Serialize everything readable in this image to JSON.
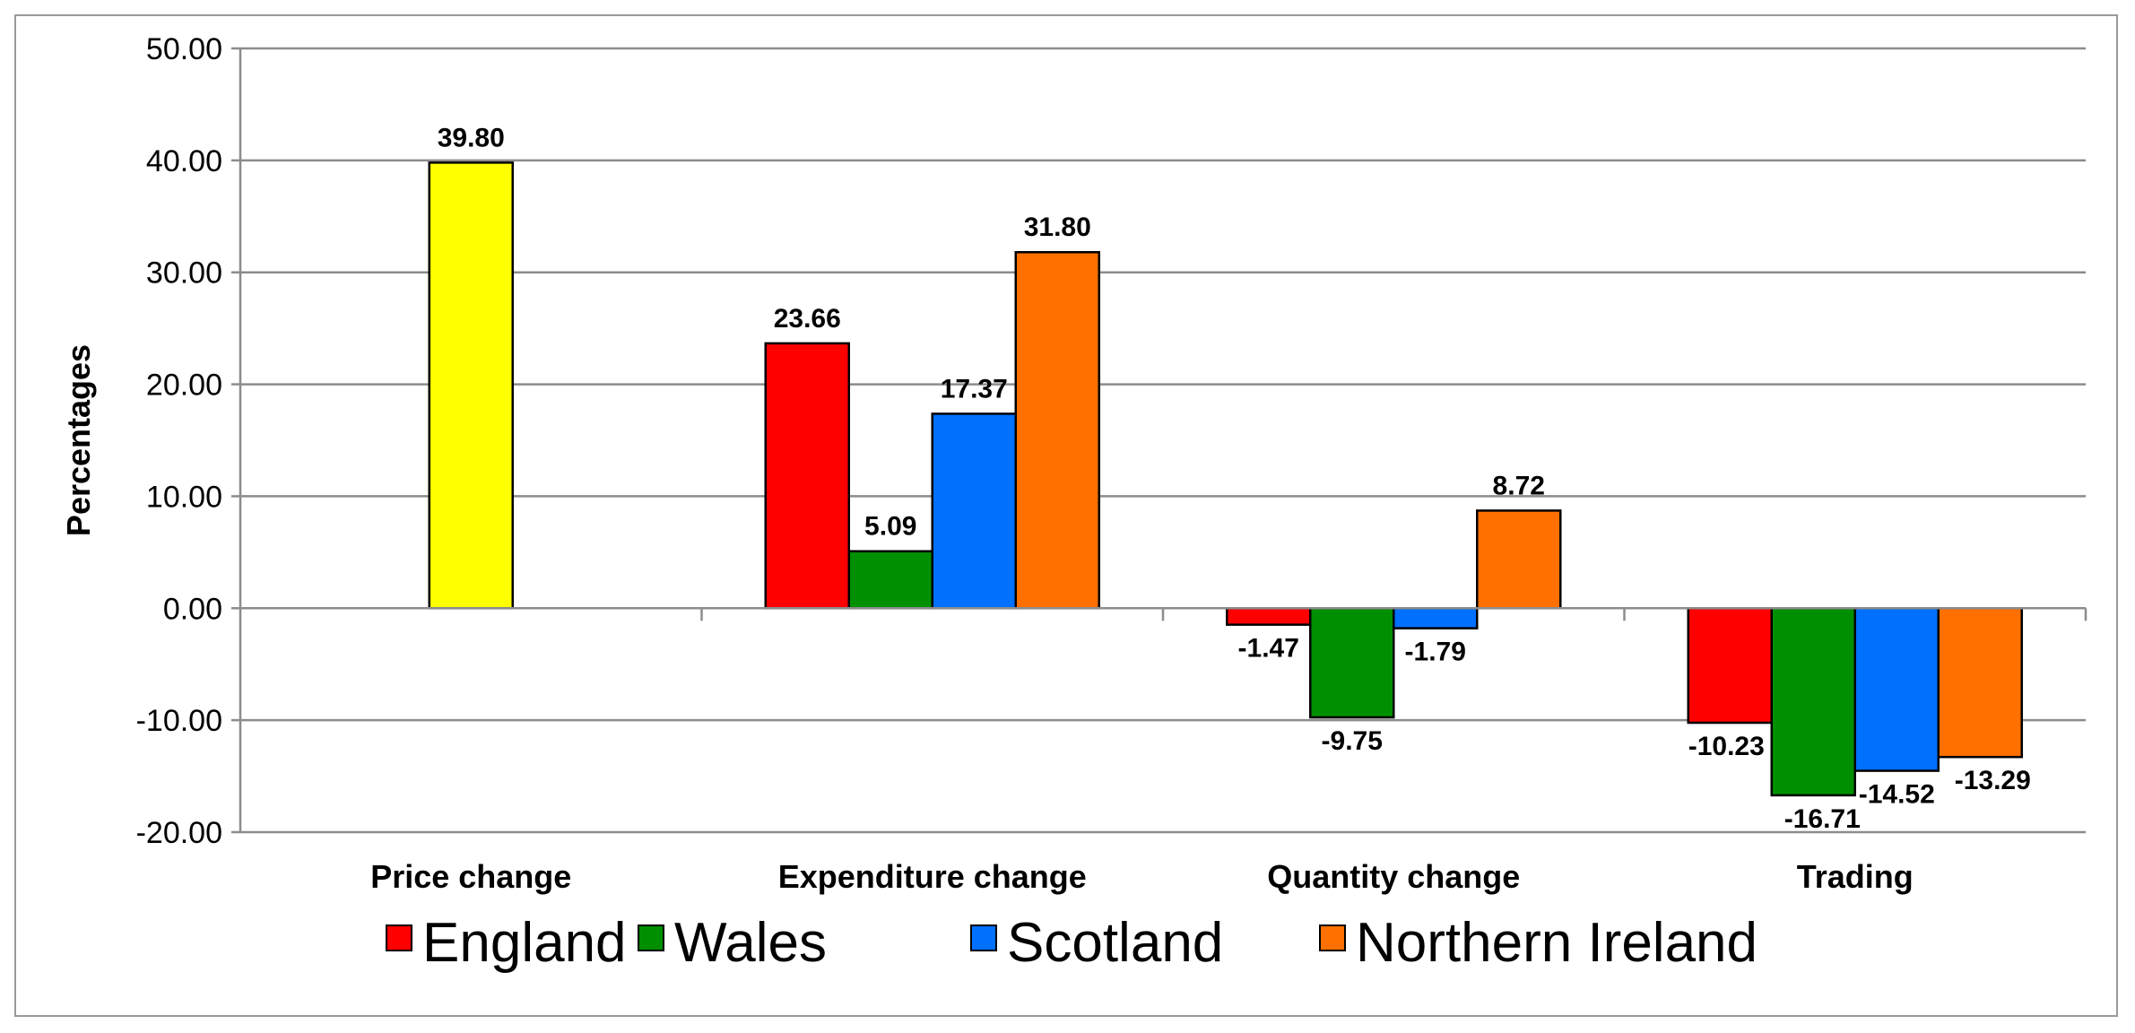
{
  "chart_data": {
    "type": "bar",
    "title": "",
    "xlabel": "",
    "ylabel": "Percentages",
    "ylim": [
      -20,
      50
    ],
    "yticks": [
      "50.00",
      "40.00",
      "30.00",
      "20.00",
      "10.00",
      "0.00",
      "-10.00",
      "-20.00"
    ],
    "categories": [
      "Price change",
      "Expenditure change",
      "Quantity change",
      "Trading"
    ],
    "series": [
      {
        "name": "England",
        "color": "#ff0000",
        "values": [
          null,
          23.66,
          -1.47,
          -10.23
        ],
        "labels": [
          null,
          "23.66",
          "-1.47",
          "-10.23"
        ]
      },
      {
        "name": "Wales",
        "color": "#008f00",
        "values": [
          null,
          5.09,
          -9.75,
          -16.71
        ],
        "labels": [
          null,
          "5.09",
          "-9.75",
          "-16.71"
        ]
      },
      {
        "name": "Scotland",
        "color": "#0070ff",
        "values": [
          null,
          17.37,
          -1.79,
          -14.52
        ],
        "labels": [
          null,
          "17.37",
          "-1.79",
          "-14.52"
        ]
      },
      {
        "name": "Northern Ireland",
        "color": "#ff7000",
        "values": [
          null,
          31.8,
          8.72,
          -13.29
        ],
        "labels": [
          null,
          "31.80",
          "8.72",
          "-13.29"
        ]
      }
    ],
    "price_change": {
      "value": 39.8,
      "label": "39.80",
      "color": "#ffff00"
    },
    "legend": {
      "position": "bottom",
      "entries": [
        "England",
        "Wales",
        "Scotland",
        "Northern Ireland"
      ]
    },
    "grid": true
  }
}
